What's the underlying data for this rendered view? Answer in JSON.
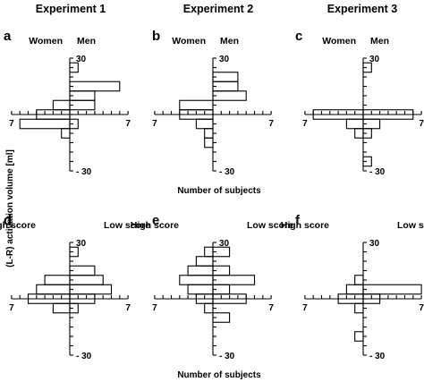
{
  "figure": {
    "column_titles": [
      "Experiment 1",
      "Experiment 2",
      "Experiment 3"
    ],
    "ylabel": "(L-R) activation volume [ml]",
    "xlabel": "Number of subjects"
  },
  "chart_data": [
    {
      "type": "bar",
      "orientation": "horizontal-back-to-back",
      "panel": "a",
      "left_label": "Women",
      "right_label": "Men",
      "y_tick_labels": [
        "30",
        "- 30"
      ],
      "x_tick_labels": [
        "7",
        "7"
      ],
      "ylim": [
        -30,
        30
      ],
      "xlim": [
        -7,
        7
      ],
      "bins": [
        [
          "22.5",
          "27.5"
        ],
        [
          "17.5",
          "22.5"
        ],
        [
          "12.5",
          "17.5"
        ],
        [
          "7.5",
          "12.5"
        ],
        [
          "2.5",
          "7.5"
        ],
        [
          "-2.5",
          "2.5"
        ],
        [
          "-7.5",
          "-2.5"
        ],
        [
          "-12.5",
          "-7.5"
        ],
        [
          "-17.5",
          "-12.5"
        ],
        [
          "-22.5",
          "-17.5"
        ],
        [
          "-27.5",
          "-22.5"
        ]
      ],
      "series": [
        {
          "name": "Women",
          "values": [
            0,
            0,
            0,
            0,
            2,
            4,
            6,
            1,
            0,
            0,
            0
          ]
        },
        {
          "name": "Men",
          "values": [
            1,
            0,
            6,
            3,
            3,
            0,
            1,
            0,
            0,
            0,
            0
          ]
        }
      ]
    },
    {
      "type": "bar",
      "orientation": "horizontal-back-to-back",
      "panel": "b",
      "left_label": "Women",
      "right_label": "Men",
      "y_tick_labels": [
        "30",
        "- 30"
      ],
      "x_tick_labels": [
        "7",
        "7"
      ],
      "ylim": [
        -30,
        30
      ],
      "xlim": [
        -7,
        7
      ],
      "bins": [
        [
          "22.5",
          "27.5"
        ],
        [
          "17.5",
          "22.5"
        ],
        [
          "12.5",
          "17.5"
        ],
        [
          "7.5",
          "12.5"
        ],
        [
          "2.5",
          "7.5"
        ],
        [
          "-2.5",
          "2.5"
        ],
        [
          "-7.5",
          "-2.5"
        ],
        [
          "-12.5",
          "-7.5"
        ],
        [
          "-17.5",
          "-12.5"
        ],
        [
          "-22.5",
          "-17.5"
        ],
        [
          "-27.5",
          "-22.5"
        ]
      ],
      "series": [
        {
          "name": "Women",
          "values": [
            0,
            0,
            0,
            0,
            4,
            4,
            2,
            1,
            1,
            0,
            0
          ]
        },
        {
          "name": "Men",
          "values": [
            0,
            3,
            3,
            4,
            0,
            0,
            0,
            0,
            0,
            0,
            0
          ]
        }
      ]
    },
    {
      "type": "bar",
      "orientation": "horizontal-back-to-back",
      "panel": "c",
      "left_label": "Women",
      "right_label": "Men",
      "y_tick_labels": [
        "30",
        "- 30"
      ],
      "x_tick_labels": [
        "7",
        "7"
      ],
      "ylim": [
        -30,
        30
      ],
      "xlim": [
        -7,
        7
      ],
      "bins": [
        [
          "22.5",
          "27.5"
        ],
        [
          "17.5",
          "22.5"
        ],
        [
          "12.5",
          "17.5"
        ],
        [
          "7.5",
          "12.5"
        ],
        [
          "2.5",
          "7.5"
        ],
        [
          "-2.5",
          "2.5"
        ],
        [
          "-7.5",
          "-2.5"
        ],
        [
          "-12.5",
          "-7.5"
        ],
        [
          "-17.5",
          "-12.5"
        ],
        [
          "-22.5",
          "-17.5"
        ],
        [
          "-27.5",
          "-22.5"
        ]
      ],
      "series": [
        {
          "name": "Women",
          "values": [
            0,
            0,
            0,
            0,
            0,
            6,
            2,
            1,
            0,
            0,
            0
          ]
        },
        {
          "name": "Men",
          "values": [
            1,
            0,
            0,
            0,
            0,
            6,
            2,
            1,
            0,
            0,
            1
          ]
        }
      ]
    },
    {
      "type": "bar",
      "orientation": "horizontal-back-to-back",
      "panel": "d",
      "left_label": "High score",
      "right_label": "Low score",
      "y_tick_labels": [
        "30",
        "- 30"
      ],
      "x_tick_labels": [
        "7",
        "7"
      ],
      "ylim": [
        -30,
        30
      ],
      "xlim": [
        -7,
        7
      ],
      "bins": [
        [
          "22.5",
          "27.5"
        ],
        [
          "17.5",
          "22.5"
        ],
        [
          "12.5",
          "17.5"
        ],
        [
          "7.5",
          "12.5"
        ],
        [
          "2.5",
          "7.5"
        ],
        [
          "-2.5",
          "2.5"
        ],
        [
          "-7.5",
          "-2.5"
        ],
        [
          "-12.5",
          "-7.5"
        ],
        [
          "-17.5",
          "-12.5"
        ],
        [
          "-22.5",
          "-17.5"
        ],
        [
          "-27.5",
          "-22.5"
        ]
      ],
      "series": [
        {
          "name": "High score",
          "values": [
            0,
            0,
            0,
            3,
            4,
            5,
            2,
            0,
            0,
            0,
            0
          ]
        },
        {
          "name": "Low score",
          "values": [
            1,
            0,
            3,
            4,
            5,
            3,
            1,
            0,
            0,
            0,
            0
          ]
        }
      ]
    },
    {
      "type": "bar",
      "orientation": "horizontal-back-to-back",
      "panel": "e",
      "left_label": "High score",
      "right_label": "Low score",
      "y_tick_labels": [
        "30",
        "- 30"
      ],
      "x_tick_labels": [
        "7",
        "7"
      ],
      "ylim": [
        -30,
        30
      ],
      "xlim": [
        -7,
        7
      ],
      "bins": [
        [
          "22.5",
          "27.5"
        ],
        [
          "17.5",
          "22.5"
        ],
        [
          "12.5",
          "17.5"
        ],
        [
          "7.5",
          "12.5"
        ],
        [
          "2.5",
          "7.5"
        ],
        [
          "-2.5",
          "2.5"
        ],
        [
          "-7.5",
          "-2.5"
        ],
        [
          "-12.5",
          "-7.5"
        ],
        [
          "-17.5",
          "-12.5"
        ],
        [
          "-22.5",
          "-17.5"
        ],
        [
          "-27.5",
          "-22.5"
        ]
      ],
      "series": [
        {
          "name": "High score",
          "values": [
            1,
            2,
            3,
            4,
            3,
            2,
            1,
            0,
            0,
            0,
            0
          ]
        },
        {
          "name": "Low score",
          "values": [
            2,
            0,
            2,
            5,
            2,
            4,
            0,
            2,
            0,
            0,
            0
          ]
        }
      ]
    },
    {
      "type": "bar",
      "orientation": "horizontal-back-to-back",
      "panel": "f",
      "left_label": "High score",
      "right_label": "Low score",
      "y_tick_labels": [
        "30",
        "- 30"
      ],
      "x_tick_labels": [
        "7",
        "7"
      ],
      "ylim": [
        -30,
        30
      ],
      "xlim": [
        -7,
        7
      ],
      "bins": [
        [
          "22.5",
          "27.5"
        ],
        [
          "17.5",
          "22.5"
        ],
        [
          "12.5",
          "17.5"
        ],
        [
          "7.5",
          "12.5"
        ],
        [
          "2.5",
          "7.5"
        ],
        [
          "-2.5",
          "2.5"
        ],
        [
          "-7.5",
          "-2.5"
        ],
        [
          "-12.5",
          "-7.5"
        ],
        [
          "-17.5",
          "-12.5"
        ],
        [
          "-22.5",
          "-17.5"
        ],
        [
          "-27.5",
          "-22.5"
        ]
      ],
      "series": [
        {
          "name": "High score",
          "values": [
            0,
            0,
            0,
            1,
            2,
            3,
            1,
            0,
            0,
            1,
            0
          ]
        },
        {
          "name": "Low score",
          "values": [
            0,
            0,
            0,
            0,
            7,
            2,
            0,
            0,
            0,
            0,
            0
          ]
        }
      ]
    }
  ]
}
